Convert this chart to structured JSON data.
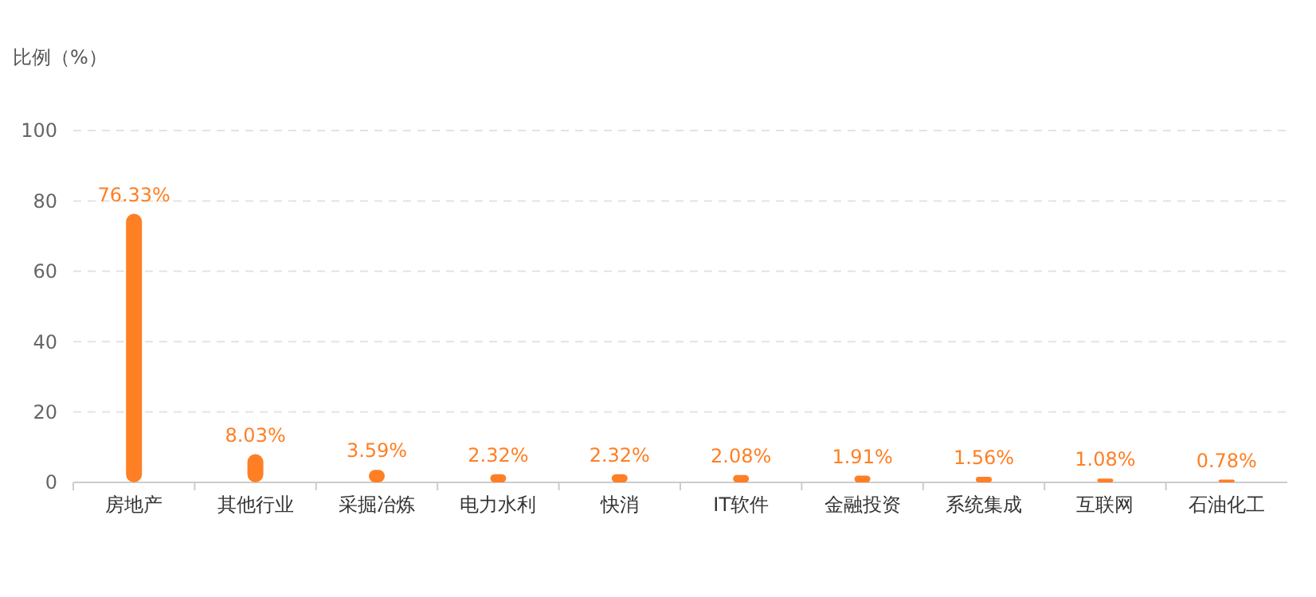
{
  "chart_data": {
    "type": "bar",
    "ylabel": "比例（%）",
    "categories": [
      "房地产",
      "其他行业",
      "采掘冶炼",
      "电力水利",
      "快消",
      "IT软件",
      "金融投资",
      "系统集成",
      "互联网",
      "石油化工"
    ],
    "values": [
      76.33,
      8.03,
      3.59,
      2.32,
      2.32,
      2.08,
      1.91,
      1.56,
      1.08,
      0.78
    ],
    "value_labels": [
      "76.33%",
      "8.03%",
      "3.59%",
      "2.32%",
      "2.32%",
      "2.08%",
      "1.91%",
      "1.56%",
      "1.08%",
      "0.78%"
    ],
    "color": "#ff7f24",
    "ylim": [
      0,
      100
    ],
    "yticks": [
      0,
      20,
      40,
      60,
      80,
      100
    ],
    "grid": "y"
  }
}
